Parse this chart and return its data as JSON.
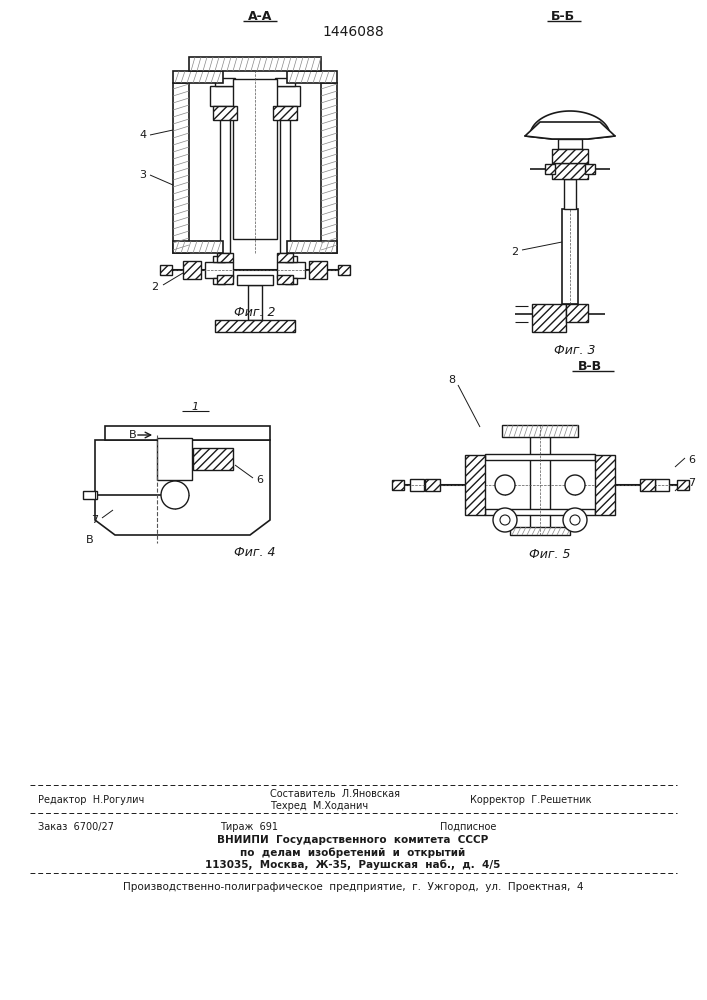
{
  "title": "1446088",
  "bg_color": "#ffffff",
  "text_color": "#1a1a1a",
  "fig2_label": "Фиг. 2",
  "fig3_label": "Фиг. 3",
  "fig4_label": "Фиг. 4",
  "fig5_label": "Фиг. 5",
  "section_aa": "А-А",
  "section_bb": "Б-Б",
  "section_vv": "В-В",
  "editor": "Редактор  Н.Рогулич",
  "compiler": "Составитель  Л.Яновская",
  "techred": "Техред  М.Ходанич",
  "corrector": "Корректор  Г.Решетник",
  "order": "Заказ  6700/27",
  "tirazh": "Тираж  691",
  "podpisnoe": "Подписное",
  "vniip1": "ВНИИПИ  Государственного  комитета  СССР",
  "vniip2": "по  делам  изобретений  и  открытий",
  "vniip3": "113035,  Москва,  Ж-35,  Раушская  наб.,  д.  4/5",
  "proizv": "Производственно-полиграфическое  предприятие,  г.  Ужгород,  ул.  Проектная,  4"
}
